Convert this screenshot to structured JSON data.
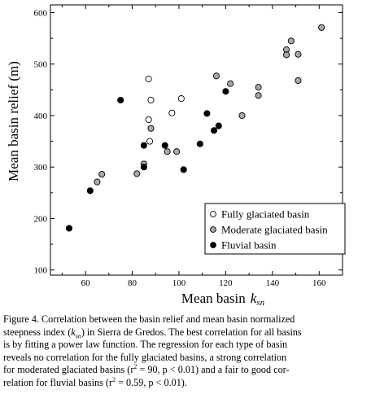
{
  "chart_data": {
    "type": "scatter",
    "xlabel": "Mean basin",
    "xlabel_symbol": "k",
    "xlabel_subscript": "sn",
    "ylabel": "Mean basin relief (m)",
    "xlim": [
      45,
      170
    ],
    "ylim": [
      90,
      615
    ],
    "x_ticks": [
      60,
      80,
      100,
      120,
      140,
      160
    ],
    "y_ticks": [
      100,
      200,
      300,
      400,
      500,
      600
    ],
    "legend_position": "lower-right",
    "series": [
      {
        "name": "Fully glaciated basin",
        "fill": "#ffffff",
        "x": [
          87,
          88,
          87,
          87.5,
          97,
          101
        ],
        "y": [
          471,
          430,
          392,
          350,
          405,
          433
        ]
      },
      {
        "name": "Moderate glaciated basin",
        "fill": "#a8a8a8",
        "x": [
          65,
          67,
          82,
          85,
          88,
          95,
          99,
          116,
          122,
          127,
          134,
          134,
          146,
          148,
          146,
          151,
          151,
          161
        ],
        "y": [
          271,
          286,
          287,
          306,
          375,
          330,
          330,
          477,
          462,
          400,
          455,
          439,
          528,
          545,
          518,
          519,
          468,
          571
        ]
      },
      {
        "name": "Fluvial basin",
        "fill": "#000000",
        "x": [
          53,
          62,
          75,
          85,
          85,
          94,
          102,
          109,
          112,
          115,
          117,
          120
        ],
        "y": [
          181,
          254,
          430,
          342,
          300,
          342,
          295,
          345,
          404,
          371,
          380,
          447
        ]
      }
    ]
  },
  "caption": {
    "line1_a": "Figure 4. Correlation between the basin relief and mean basin normalized",
    "line2_a": "steepness index (",
    "line2_k": "k",
    "line2_sub": "sn",
    "line2_b": ") in Sierra de Gredos. The best correlation for all basins",
    "line3": "is by fitting a power law function. The regression for each type of basin",
    "line4": "reveals no correlation for the fully glaciated basins, a strong correlation",
    "line5_a": "for moderated glaciated basins (r",
    "line5_sup": "2",
    "line5_b": " = 90, p < 0.01) and a fair to good cor-",
    "line6_a": "relation for fluvial basins (r",
    "line6_sup": "2",
    "line6_b": " = 0.59, p < 0.01)."
  }
}
